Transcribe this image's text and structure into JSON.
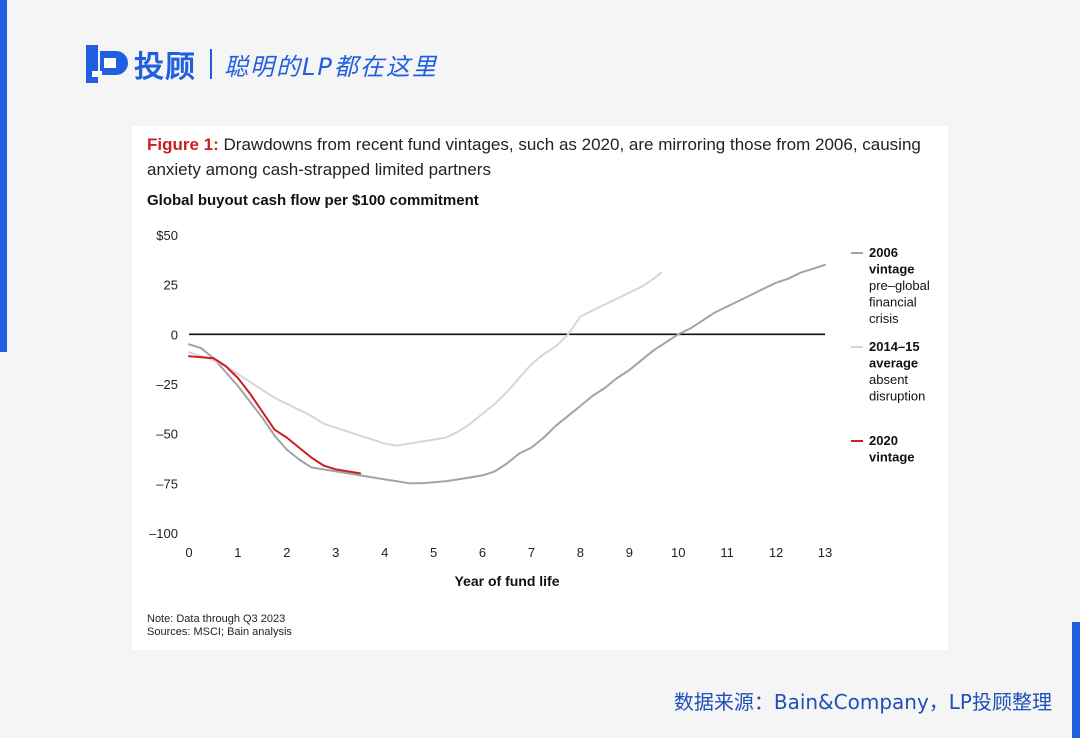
{
  "brand": {
    "name": "投顾",
    "slogan": "聪明的LP都在这里"
  },
  "figure": {
    "label": "Figure 1:",
    "caption": " Drawdowns from recent fund vintages, such as 2020, are mirroring those from 2006, causing anxiety among cash-strapped limited partners",
    "note": "Note: Data through Q3 2023",
    "sources": "Sources: MSCI; Bain analysis"
  },
  "source_credit": "数据来源：Bain&Company，LP投顾整理",
  "chart_data": {
    "type": "line",
    "title": "Global buyout cash flow per $100 commitment",
    "xlabel": "Year of fund life",
    "ylabel": "",
    "xlim": [
      0,
      13
    ],
    "ylim": [
      -100,
      50
    ],
    "x_ticks": [
      "0",
      "1",
      "2",
      "3",
      "4",
      "5",
      "6",
      "7",
      "8",
      "9",
      "10",
      "11",
      "12",
      "13"
    ],
    "y_ticks": [
      {
        "value": 50,
        "label": "$50"
      },
      {
        "value": 25,
        "label": "25"
      },
      {
        "value": 0,
        "label": "0"
      },
      {
        "value": -25,
        "label": "–25"
      },
      {
        "value": -50,
        "label": "–50"
      },
      {
        "value": -75,
        "label": "–75"
      },
      {
        "value": -100,
        "label": "–100"
      }
    ],
    "grid": false,
    "zero_line": true,
    "legend_position": "right",
    "series": [
      {
        "name": "2006 vintage pre–global financial crisis",
        "legend_bold": "2006 vintage",
        "legend_rest": "pre–global financial crisis",
        "color": "#a3a3a3",
        "x": [
          0,
          0.25,
          0.5,
          0.75,
          1,
          1.25,
          1.5,
          1.75,
          2,
          2.25,
          2.5,
          2.75,
          3,
          3.25,
          3.5,
          3.75,
          4,
          4.25,
          4.5,
          4.75,
          5,
          5.25,
          5.5,
          5.75,
          6,
          6.25,
          6.5,
          6.75,
          7,
          7.25,
          7.5,
          7.75,
          8,
          8.25,
          8.5,
          8.75,
          9,
          9.25,
          9.5,
          9.75,
          10,
          10.25,
          10.5,
          10.75,
          11,
          11.25,
          11.5,
          11.75,
          12,
          12.25,
          12.5,
          12.75,
          13
        ],
        "y": [
          -5,
          -7,
          -12,
          -19,
          -26,
          -34,
          -42,
          -51,
          -58,
          -63,
          -67,
          -68,
          -69,
          -70,
          -71,
          -72,
          -73,
          -74,
          -75,
          -75,
          -74.5,
          -74,
          -73,
          -72,
          -71,
          -69,
          -65,
          -60,
          -57,
          -52,
          -46,
          -41,
          -36,
          -31,
          -27,
          -22,
          -18,
          -13,
          -8,
          -4,
          0,
          3,
          7,
          11,
          14,
          17,
          20,
          23,
          26,
          28,
          31,
          33,
          35
        ]
      },
      {
        "name": "2014–15 average absent disruption",
        "legend_bold": "2014–15 average",
        "legend_rest": "absent disruption",
        "color": "#d6d6d6",
        "x": [
          0,
          0.25,
          0.5,
          0.75,
          1,
          1.25,
          1.5,
          1.75,
          2,
          2.25,
          2.5,
          2.75,
          3,
          3.25,
          3.5,
          3.75,
          4,
          4.25,
          4.5,
          4.75,
          5,
          5.25,
          5.5,
          5.75,
          6,
          6.25,
          6.5,
          6.75,
          7,
          7.25,
          7.5,
          7.75,
          8,
          8.25,
          8.5,
          8.75,
          9,
          9.25,
          9.5,
          9.65
        ],
        "y": [
          -9,
          -11,
          -13,
          -16,
          -20,
          -24,
          -28,
          -32,
          -35,
          -38,
          -41,
          -45,
          -47,
          -49,
          -51,
          -53,
          -55,
          -56,
          -55,
          -54,
          -53,
          -52,
          -49,
          -45,
          -40,
          -35,
          -29,
          -22,
          -15,
          -10,
          -6,
          0,
          9,
          12,
          15,
          18,
          21,
          24,
          28,
          31
        ]
      },
      {
        "name": "2020 vintage",
        "legend_bold": "2020 vintage",
        "legend_rest": "",
        "color": "#cc1f24",
        "x": [
          0,
          0.25,
          0.5,
          0.75,
          1,
          1.25,
          1.5,
          1.75,
          2,
          2.25,
          2.5,
          2.75,
          3,
          3.25,
          3.5
        ],
        "y": [
          -11,
          -11.5,
          -12,
          -16,
          -22,
          -30,
          -39,
          -48,
          -52,
          -57,
          -62,
          -66,
          -68,
          -69,
          -70
        ]
      }
    ]
  }
}
